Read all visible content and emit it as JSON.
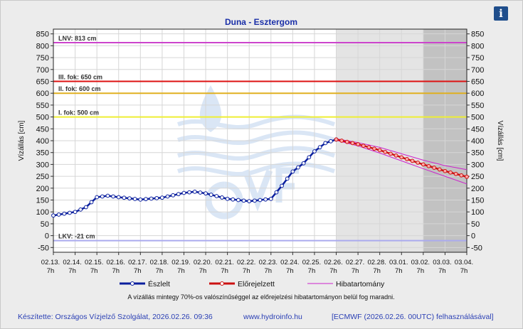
{
  "colors": {
    "observed": "#0a1f9e",
    "forecast": "#cc1111",
    "error_band": "#cc22cc",
    "lnv_line": "#cc44cc",
    "level3_line": "#dd1111",
    "level2_line": "#e0b020",
    "level1_line": "#eeee33",
    "lkv_line": "#aaaaee",
    "title": "#1a2fa8",
    "footer": "#2a3fb4"
  },
  "info_button": {
    "icon": "info-icon",
    "label": "i"
  },
  "chart_data": {
    "type": "line",
    "title": "Duna - Esztergom",
    "ylabel_left": "Vízállás [cm]",
    "ylabel_right": "Vízállás [cm]",
    "ylim": [
      -70,
      870
    ],
    "yticks": [
      -50,
      0,
      50,
      100,
      150,
      200,
      250,
      300,
      350,
      400,
      450,
      500,
      550,
      600,
      650,
      700,
      750,
      800,
      850
    ],
    "x_day_labels": [
      "02.13.",
      "02.14.",
      "02.15.",
      "02.16.",
      "02.17.",
      "02.18.",
      "02.19.",
      "02.20.",
      "02.21.",
      "02.22.",
      "02.23.",
      "02.24.",
      "02.25.",
      "02.26.",
      "02.27.",
      "02.28.",
      "03.01.",
      "03.02.",
      "03.03.",
      "03.04."
    ],
    "x_hour_label": "7h",
    "x_unit_days": "days from 02.13. 7h",
    "x_range_days": [
      0,
      19
    ],
    "forecast_start_day": 13,
    "reduced_reliability_start_day": 17,
    "thresholds": [
      {
        "label": "LNV: 813 cm",
        "value": 813,
        "color_key": "lnv_line"
      },
      {
        "label": "III. fok: 650 cm",
        "value": 650,
        "color_key": "level3_line"
      },
      {
        "label": "II. fok: 600 cm",
        "value": 600,
        "color_key": "level2_line"
      },
      {
        "label": "I. fok: 500 cm",
        "value": 500,
        "color_key": "level1_line"
      },
      {
        "label": "LKV: -21 cm",
        "value": -21,
        "color_key": "lkv_line"
      }
    ],
    "series": [
      {
        "name": "Észlelt",
        "x": [
          0,
          1,
          1.5,
          2,
          2.5,
          3,
          4,
          5,
          6,
          6.5,
          7,
          8,
          9,
          10,
          10.5,
          11,
          11.5,
          12,
          12.5,
          13
        ],
        "values": [
          85,
          100,
          120,
          162,
          168,
          162,
          152,
          160,
          180,
          185,
          178,
          155,
          145,
          155,
          210,
          270,
          305,
          355,
          390,
          405
        ]
      },
      {
        "name": "Előrejelzett",
        "x": [
          13,
          14,
          15,
          16,
          17,
          18,
          19
        ],
        "values": [
          405,
          385,
          360,
          330,
          300,
          272,
          248
        ]
      },
      {
        "name": "Hibatartomány",
        "x": [
          13,
          14,
          15,
          16,
          17,
          18,
          19
        ],
        "upper": [
          408,
          392,
          372,
          345,
          318,
          295,
          278
        ],
        "lower": [
          402,
          378,
          348,
          315,
          282,
          250,
          218
        ]
      }
    ],
    "legend_position": "bottom",
    "note": "A vízállás mintegy 70%-os valószínűséggel az előrejelzési hibatartományon belül fog maradni."
  },
  "footer": {
    "author": "Készítette: Országos Vízjelző Szolgálat, 2026.02.26. 09:36",
    "website": "www.hydroinfo.hu",
    "source": "[ECMWF (2026.02.26. 00UTC) felhasználásával]"
  }
}
